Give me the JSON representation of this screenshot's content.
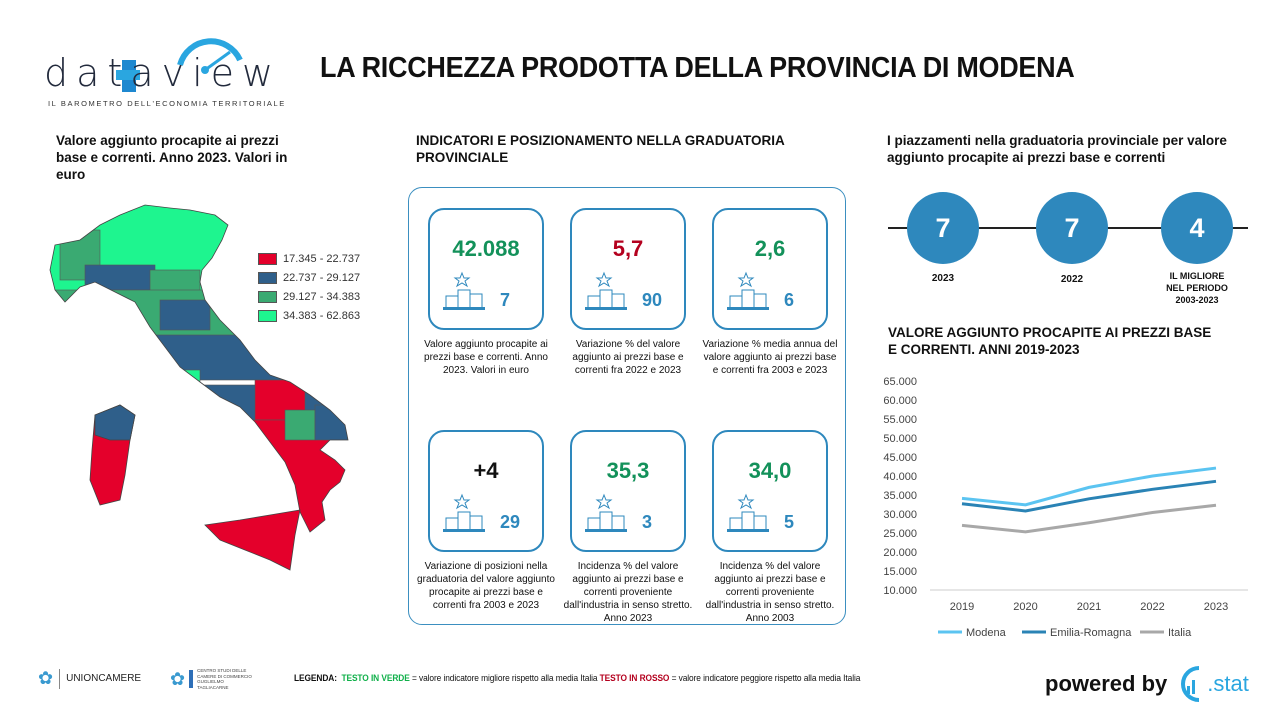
{
  "header": {
    "title": "LA RICCHEZZA PRODOTTA DELLA PROVINCIA DI MODENA",
    "logo_text": "dataview",
    "logo_tagline": "IL BAROMETRO DELL'ECONOMIA TERRITORIALE"
  },
  "map": {
    "title": "Valore aggiunto procapite ai prezzi base e correnti. Anno 2023. Valori in euro",
    "legend": [
      {
        "label": "17.345 - 22.737",
        "color": "#e4002b"
      },
      {
        "label": "22.737 - 29.127",
        "color": "#2f5f8a"
      },
      {
        "label": "29.127 - 34.383",
        "color": "#3aaa72"
      },
      {
        "label": "34.383 - 62.863",
        "color": "#1ef58f"
      }
    ]
  },
  "indicators": {
    "title": "INDICATORI E POSIZIONAMENTO NELLA GRADUATORIA PROVINCIALE",
    "cards": [
      {
        "value": "42.088",
        "color": "green",
        "rank": "7",
        "desc": "Valore aggiunto procapite ai prezzi base e correnti. Anno 2023. Valori in euro"
      },
      {
        "value": "5,7",
        "color": "red",
        "rank": "90",
        "desc": "Variazione % del valore aggiunto ai prezzi base e correnti fra 2022 e 2023"
      },
      {
        "value": "2,6",
        "color": "green",
        "rank": "6",
        "desc": "Variazione % media annua del valore aggiunto ai prezzi base e correnti fra 2003 e 2023"
      },
      {
        "value": "+4",
        "color": "black",
        "rank": "29",
        "desc": "Variazione di posizioni nella graduatoria del valore aggiunto procapite ai prezzi base e correnti fra 2003 e 2023"
      },
      {
        "value": "35,3",
        "color": "green",
        "rank": "3",
        "desc": "Incidenza % del valore aggiunto ai prezzi base e correnti proveniente dall'industria in senso stretto. Anno 2023"
      },
      {
        "value": "34,0",
        "color": "green",
        "rank": "5",
        "desc": "Incidenza % del valore aggiunto ai prezzi base e correnti proveniente dall'industria in senso stretto. Anno 2003"
      }
    ]
  },
  "placements": {
    "title": "I piazzamenti nella graduatoria provinciale per valore aggiunto procapite ai prezzi base e correnti",
    "items": [
      {
        "value": "7",
        "label": "2023"
      },
      {
        "value": "7",
        "label": "2022"
      },
      {
        "value": "4",
        "label": "IL MIGLIORE NEL PERIODO 2003-2023"
      }
    ]
  },
  "chart_data": {
    "type": "line",
    "title": "VALORE AGGIUNTO PROCAPITE AI PREZZI BASE E CORRENTI. ANNI 2019-2023",
    "categories": [
      "2019",
      "2020",
      "2021",
      "2022",
      "2023"
    ],
    "ylim": [
      10000,
      65000
    ],
    "yticks": [
      "10.000",
      "15.000",
      "20.000",
      "25.000",
      "30.000",
      "35.000",
      "40.000",
      "45.000",
      "50.000",
      "55.000",
      "60.000",
      "65.000"
    ],
    "legend_position": "bottom",
    "grid": false,
    "series": [
      {
        "name": "Modena",
        "color": "#5bc4f1",
        "values": [
          34100,
          32400,
          37000,
          40000,
          42088
        ]
      },
      {
        "name": "Emilia-Romagna",
        "color": "#2a83b5",
        "values": [
          32700,
          30800,
          34000,
          36500,
          38600
        ]
      },
      {
        "name": "Italia",
        "color": "#a8a8a8",
        "values": [
          27000,
          25300,
          27700,
          30400,
          32300
        ]
      }
    ]
  },
  "footer": {
    "unioncamere": "UNIONCAMERE",
    "centro_studi": "CENTRO STUDI DELLE CAMERE DI COMMERCIO GUGLIELMO TAGLIACARNE",
    "legend_label": "LEGENDA:",
    "green_text": "TESTO IN VERDE",
    "green_desc": "= valore indicatore migliore rispetto alla media Italia",
    "red_text": "TESTO IN ROSSO",
    "red_desc": "= valore indicatore peggiore rispetto alla media Italia",
    "powered_by": "powered by",
    "stat": ".stat"
  }
}
